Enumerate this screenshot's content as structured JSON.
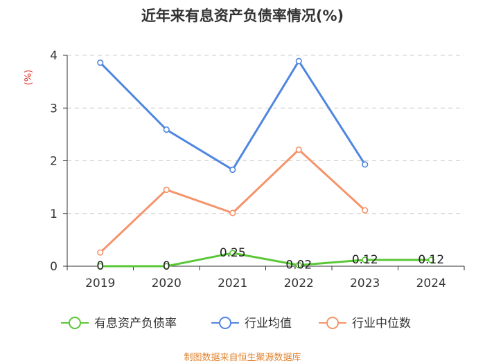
{
  "chart_data": {
    "type": "line",
    "title": "近年来有息资产负债率情况(%)",
    "ylabel": "(%)",
    "categories": [
      "2019",
      "2020",
      "2021",
      "2022",
      "2023",
      "2024"
    ],
    "ylim": [
      0,
      4
    ],
    "yticks": [
      "0",
      "1",
      "2",
      "3",
      "4"
    ],
    "grid": true,
    "legend_position": "bottom",
    "series": [
      {
        "name": "有息资产负债率",
        "color": "#5ac736",
        "values": [
          0,
          0,
          0.25,
          0.02,
          0.12,
          0.12
        ],
        "labels": [
          "0",
          "0",
          "0.25",
          "0.02",
          "0.12",
          "0.12"
        ]
      },
      {
        "name": "行业均值",
        "color": "#4f86e0",
        "values": [
          3.86,
          2.59,
          1.83,
          3.89,
          1.93,
          null
        ]
      },
      {
        "name": "行业中位数",
        "color": "#f5946a",
        "values": [
          0.26,
          1.45,
          1.01,
          2.21,
          1.06,
          null
        ]
      }
    ],
    "unit_color": "#e8382f"
  },
  "source": {
    "text": "制图数据来自恒生聚源数据库",
    "color": "#e0832f"
  }
}
